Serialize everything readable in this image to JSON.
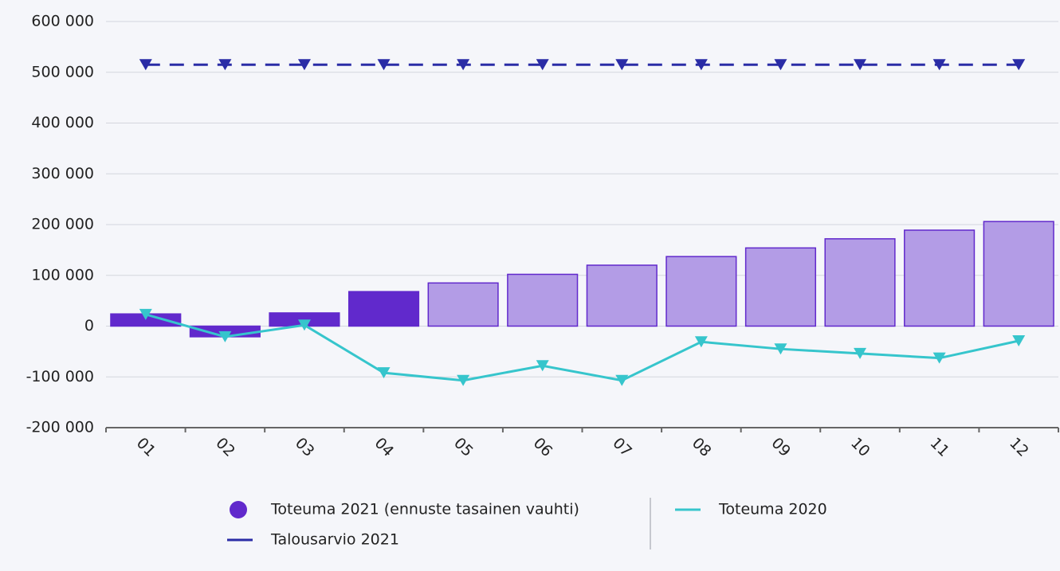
{
  "chart_data": {
    "type": "bar",
    "categories": [
      "01",
      "02",
      "03",
      "04",
      "05",
      "06",
      "07",
      "08",
      "09",
      "10",
      "11",
      "12"
    ],
    "series": [
      {
        "name": "Toteuma 2021 (ennuste tasainen vauhti)",
        "type": "bar",
        "color": "#6129cc",
        "colors": [
          "#6129cc",
          "#6129cc",
          "#6129cc",
          "#6129cc",
          "#b39ce6",
          "#b39ce6",
          "#b39ce6",
          "#b39ce6",
          "#b39ce6",
          "#b39ce6",
          "#b39ce6",
          "#b39ce6"
        ],
        "values": [
          24000,
          -21000,
          26000,
          68000,
          85000,
          102000,
          120000,
          137000,
          154000,
          172000,
          189000,
          206000
        ]
      },
      {
        "name": "Toteuma 2020",
        "type": "line",
        "color": "#36c5cc",
        "values": [
          23000,
          -21000,
          2000,
          -92000,
          -107000,
          -78000,
          -107000,
          -31000,
          -45000,
          -54000,
          -63000,
          -29000
        ]
      },
      {
        "name": "Talousarvio 2021",
        "type": "line",
        "dashed": true,
        "color": "#2a2ca6",
        "values": [
          515000,
          515000,
          515000,
          515000,
          515000,
          515000,
          515000,
          515000,
          515000,
          515000,
          515000,
          515000
        ]
      }
    ],
    "ylim": [
      -200000,
      600000
    ],
    "yticks": [
      {
        "value": -200000,
        "label": "-200 000"
      },
      {
        "value": -100000,
        "label": "-100 000"
      },
      0,
      {
        "value": 100000,
        "label": "100 000"
      },
      {
        "value": 200000,
        "label": "200 000"
      },
      {
        "value": 300000,
        "label": "300 000"
      },
      {
        "value": 400000,
        "label": "400 000"
      },
      {
        "value": 500000,
        "label": "500 000"
      },
      {
        "value": 600000,
        "label": "600 000"
      }
    ],
    "grid": true,
    "legend": "bottom"
  }
}
